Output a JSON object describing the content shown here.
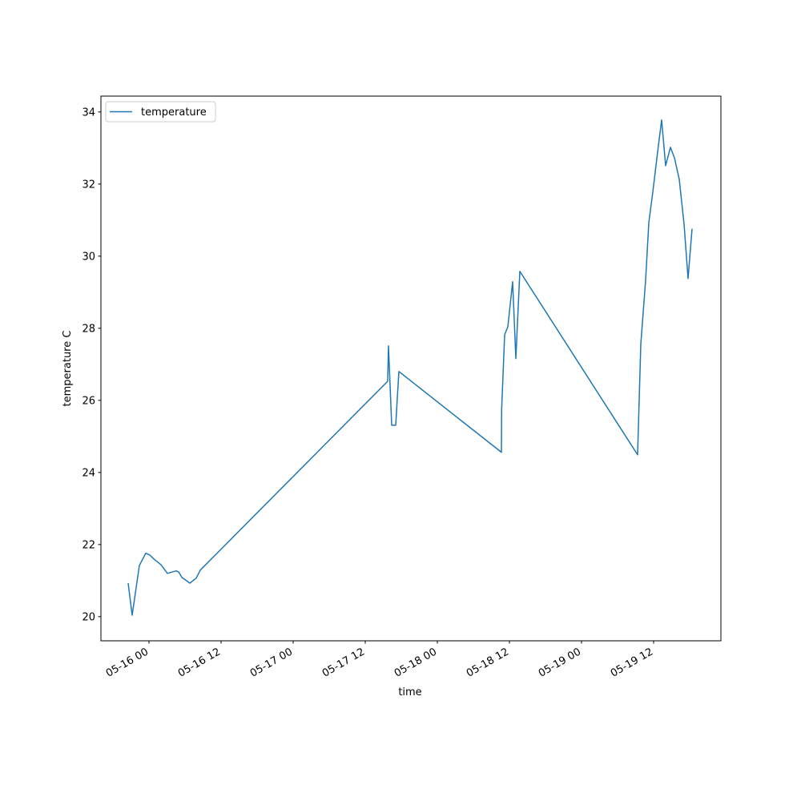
{
  "chart_data": {
    "type": "line",
    "x_label": "time",
    "y_label": "temperature C",
    "legend_loc": "upper left",
    "xlim": [
      "05-15 16:00",
      "05-19 23:12"
    ],
    "xticks": [
      {
        "value": "05-16 00:00",
        "label": "05-16 00"
      },
      {
        "value": "05-16 12:00",
        "label": "05-16 12"
      },
      {
        "value": "05-17 00:00",
        "label": "05-17 00"
      },
      {
        "value": "05-17 12:00",
        "label": "05-17 12"
      },
      {
        "value": "05-18 00:00",
        "label": "05-18 00"
      },
      {
        "value": "05-18 12:00",
        "label": "05-18 12"
      },
      {
        "value": "05-19 00:00",
        "label": "05-19 00"
      },
      {
        "value": "05-19 12:00",
        "label": "05-19 12"
      }
    ],
    "ylim": [
      19.33,
      34.44
    ],
    "yticks": [
      20,
      22,
      24,
      26,
      28,
      30,
      32,
      34
    ],
    "x": [
      "05-15 20:32",
      "05-15 21:12",
      "05-15 22:24",
      "05-15 23:28",
      "05-16 00:08",
      "05-16 00:48",
      "05-16 02:00",
      "05-16 03:04",
      "05-16 04:32",
      "05-16 04:56",
      "05-16 05:28",
      "05-16 06:48",
      "05-16 07:52",
      "05-16 08:32",
      "05-17 15:44",
      "05-17 15:52",
      "05-17 16:24",
      "05-17 17:04",
      "05-17 17:36",
      "05-18 10:40",
      "05-18 10:42",
      "05-18 11:12",
      "05-18 11:44",
      "05-18 12:32",
      "05-18 13:04",
      "05-18 13:44",
      "05-19 09:20",
      "05-19 09:52",
      "05-19 10:40",
      "05-19 11:12",
      "05-19 11:52",
      "05-19 12:40",
      "05-19 13:20",
      "05-19 14:00",
      "05-19 14:48",
      "05-19 15:28",
      "05-19 16:16",
      "05-19 17:04",
      "05-19 17:44",
      "05-19 18:24"
    ],
    "series": [
      {
        "name": "temperature",
        "color": "#1f77b4",
        "values": [
          20.93,
          20.04,
          21.42,
          21.76,
          21.71,
          21.6,
          21.44,
          21.2,
          21.27,
          21.24,
          21.09,
          20.93,
          21.07,
          21.29,
          26.53,
          27.51,
          25.31,
          25.31,
          26.8,
          24.56,
          25.73,
          27.82,
          28.04,
          29.29,
          27.16,
          29.58,
          24.49,
          27.56,
          29.33,
          30.93,
          31.78,
          32.89,
          33.78,
          32.51,
          33.02,
          32.73,
          32.13,
          30.89,
          29.38,
          30.76
        ]
      }
    ]
  }
}
